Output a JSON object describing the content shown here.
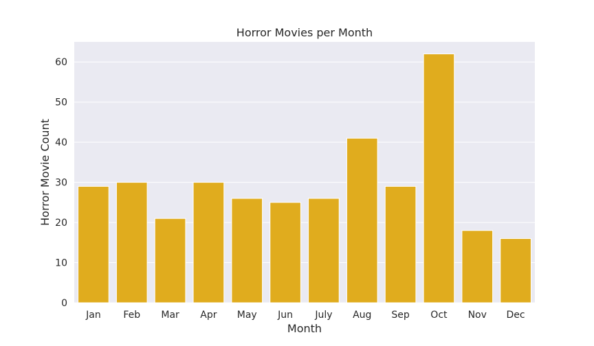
{
  "chart_data": {
    "type": "bar",
    "title": "Horror Movies per Month",
    "xlabel": "Month",
    "ylabel": "Horror Movie Count",
    "categories": [
      "Jan",
      "Feb",
      "Mar",
      "Apr",
      "May",
      "Jun",
      "July",
      "Aug",
      "Sep",
      "Oct",
      "Nov",
      "Dec"
    ],
    "values": [
      29,
      30,
      21,
      30,
      26,
      25,
      26,
      41,
      29,
      62,
      18,
      16
    ],
    "ylim": [
      0,
      65
    ],
    "yticks": [
      0,
      10,
      20,
      30,
      40,
      50,
      60
    ],
    "grid": true,
    "bar_color": "#e0ac1e",
    "background_color": "#eaeaf2"
  }
}
